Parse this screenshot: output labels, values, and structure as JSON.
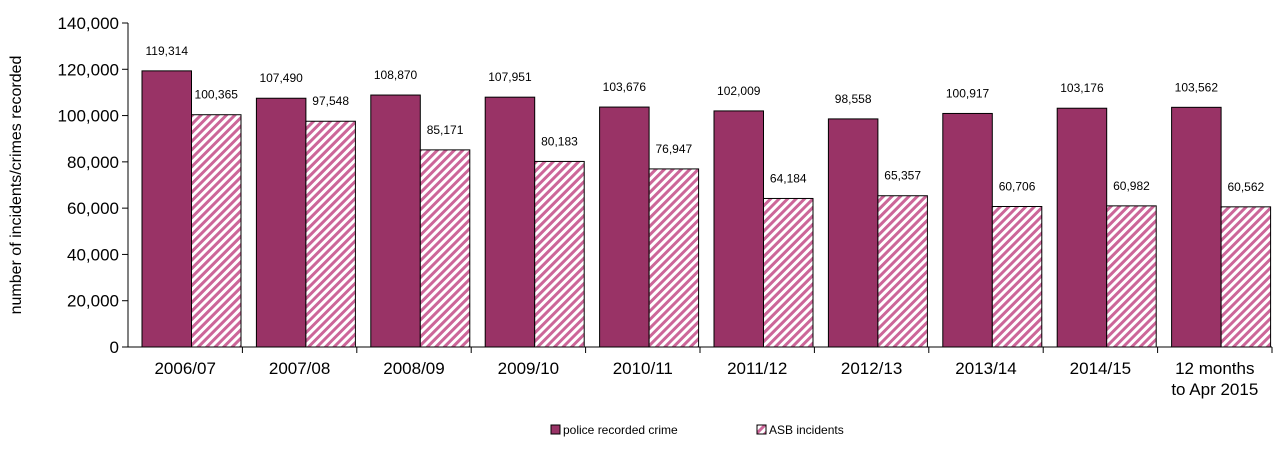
{
  "chart_data": {
    "type": "bar",
    "title": "",
    "xlabel": "",
    "ylabel": "number of incidents/crimes recorded",
    "ylim": [
      0,
      140000
    ],
    "yticks": [
      0,
      20000,
      40000,
      60000,
      80000,
      100000,
      120000,
      140000
    ],
    "ytick_labels": [
      "0",
      "20,000",
      "40,000",
      "60,000",
      "80,000",
      "100,000",
      "120,000",
      "140,000"
    ],
    "categories": [
      [
        "2006/07"
      ],
      [
        "2007/08"
      ],
      [
        "2008/09"
      ],
      [
        "2009/10"
      ],
      [
        "2010/11"
      ],
      [
        "2011/12"
      ],
      [
        "2012/13"
      ],
      [
        "2013/14"
      ],
      [
        "2014/15"
      ],
      [
        "12 months",
        "to Apr 2015"
      ]
    ],
    "series": [
      {
        "name": "police recorded crime",
        "color": "#993366",
        "pattern": "solid",
        "values": [
          119314,
          107490,
          108870,
          107951,
          103676,
          102009,
          98558,
          100917,
          103176,
          103562
        ],
        "labels": [
          "119,314",
          "107,490",
          "108,870",
          "107,951",
          "103,676",
          "102,009",
          "98,558",
          "100,917",
          "103,176",
          "103,562"
        ]
      },
      {
        "name": "ASB incidents",
        "color": "#CC6699",
        "pattern": "diagonal-hatch",
        "values": [
          100365,
          97548,
          85171,
          80183,
          76947,
          64184,
          65357,
          60706,
          60982,
          60562
        ],
        "labels": [
          "100,365",
          "97,548",
          "85,171",
          "80,183",
          "76,947",
          "64,184",
          "65,357",
          "60,706",
          "60,982",
          "60,562"
        ]
      }
    ],
    "grid": false,
    "legend": "bottom-center"
  }
}
